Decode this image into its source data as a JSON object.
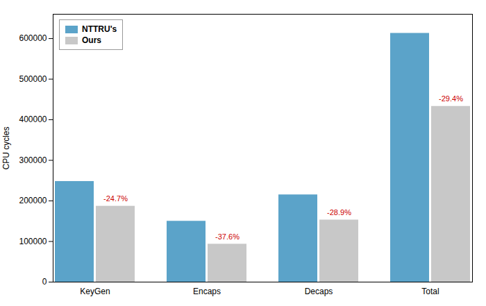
{
  "chart_data": {
    "type": "bar",
    "categories": [
      "KeyGen",
      "Encaps",
      "Decaps",
      "Total"
    ],
    "series": [
      {
        "name": "NTTRU's",
        "color": "#5BA3C9",
        "values": [
          248000,
          150000,
          215000,
          613000
        ]
      },
      {
        "name": "Ours",
        "color": "#C8C8C8",
        "values": [
          187000,
          93500,
          153000,
          433000
        ]
      }
    ],
    "annotations": [
      {
        "category": "KeyGen",
        "series": "Ours",
        "text": "-24.7%",
        "color": "#CC0000"
      },
      {
        "category": "Encaps",
        "series": "Ours",
        "text": "-37.6%",
        "color": "#CC0000"
      },
      {
        "category": "Decaps",
        "series": "Ours",
        "text": "-28.9%",
        "color": "#CC0000"
      },
      {
        "category": "Total",
        "series": "Ours",
        "text": "-29.4%",
        "color": "#CC0000"
      }
    ],
    "ylabel": "CPU cycles",
    "ylim": [
      0,
      660000
    ],
    "yticks": [
      0,
      100000,
      200000,
      300000,
      400000,
      500000,
      600000
    ],
    "grid": false,
    "legend": "upper left"
  }
}
